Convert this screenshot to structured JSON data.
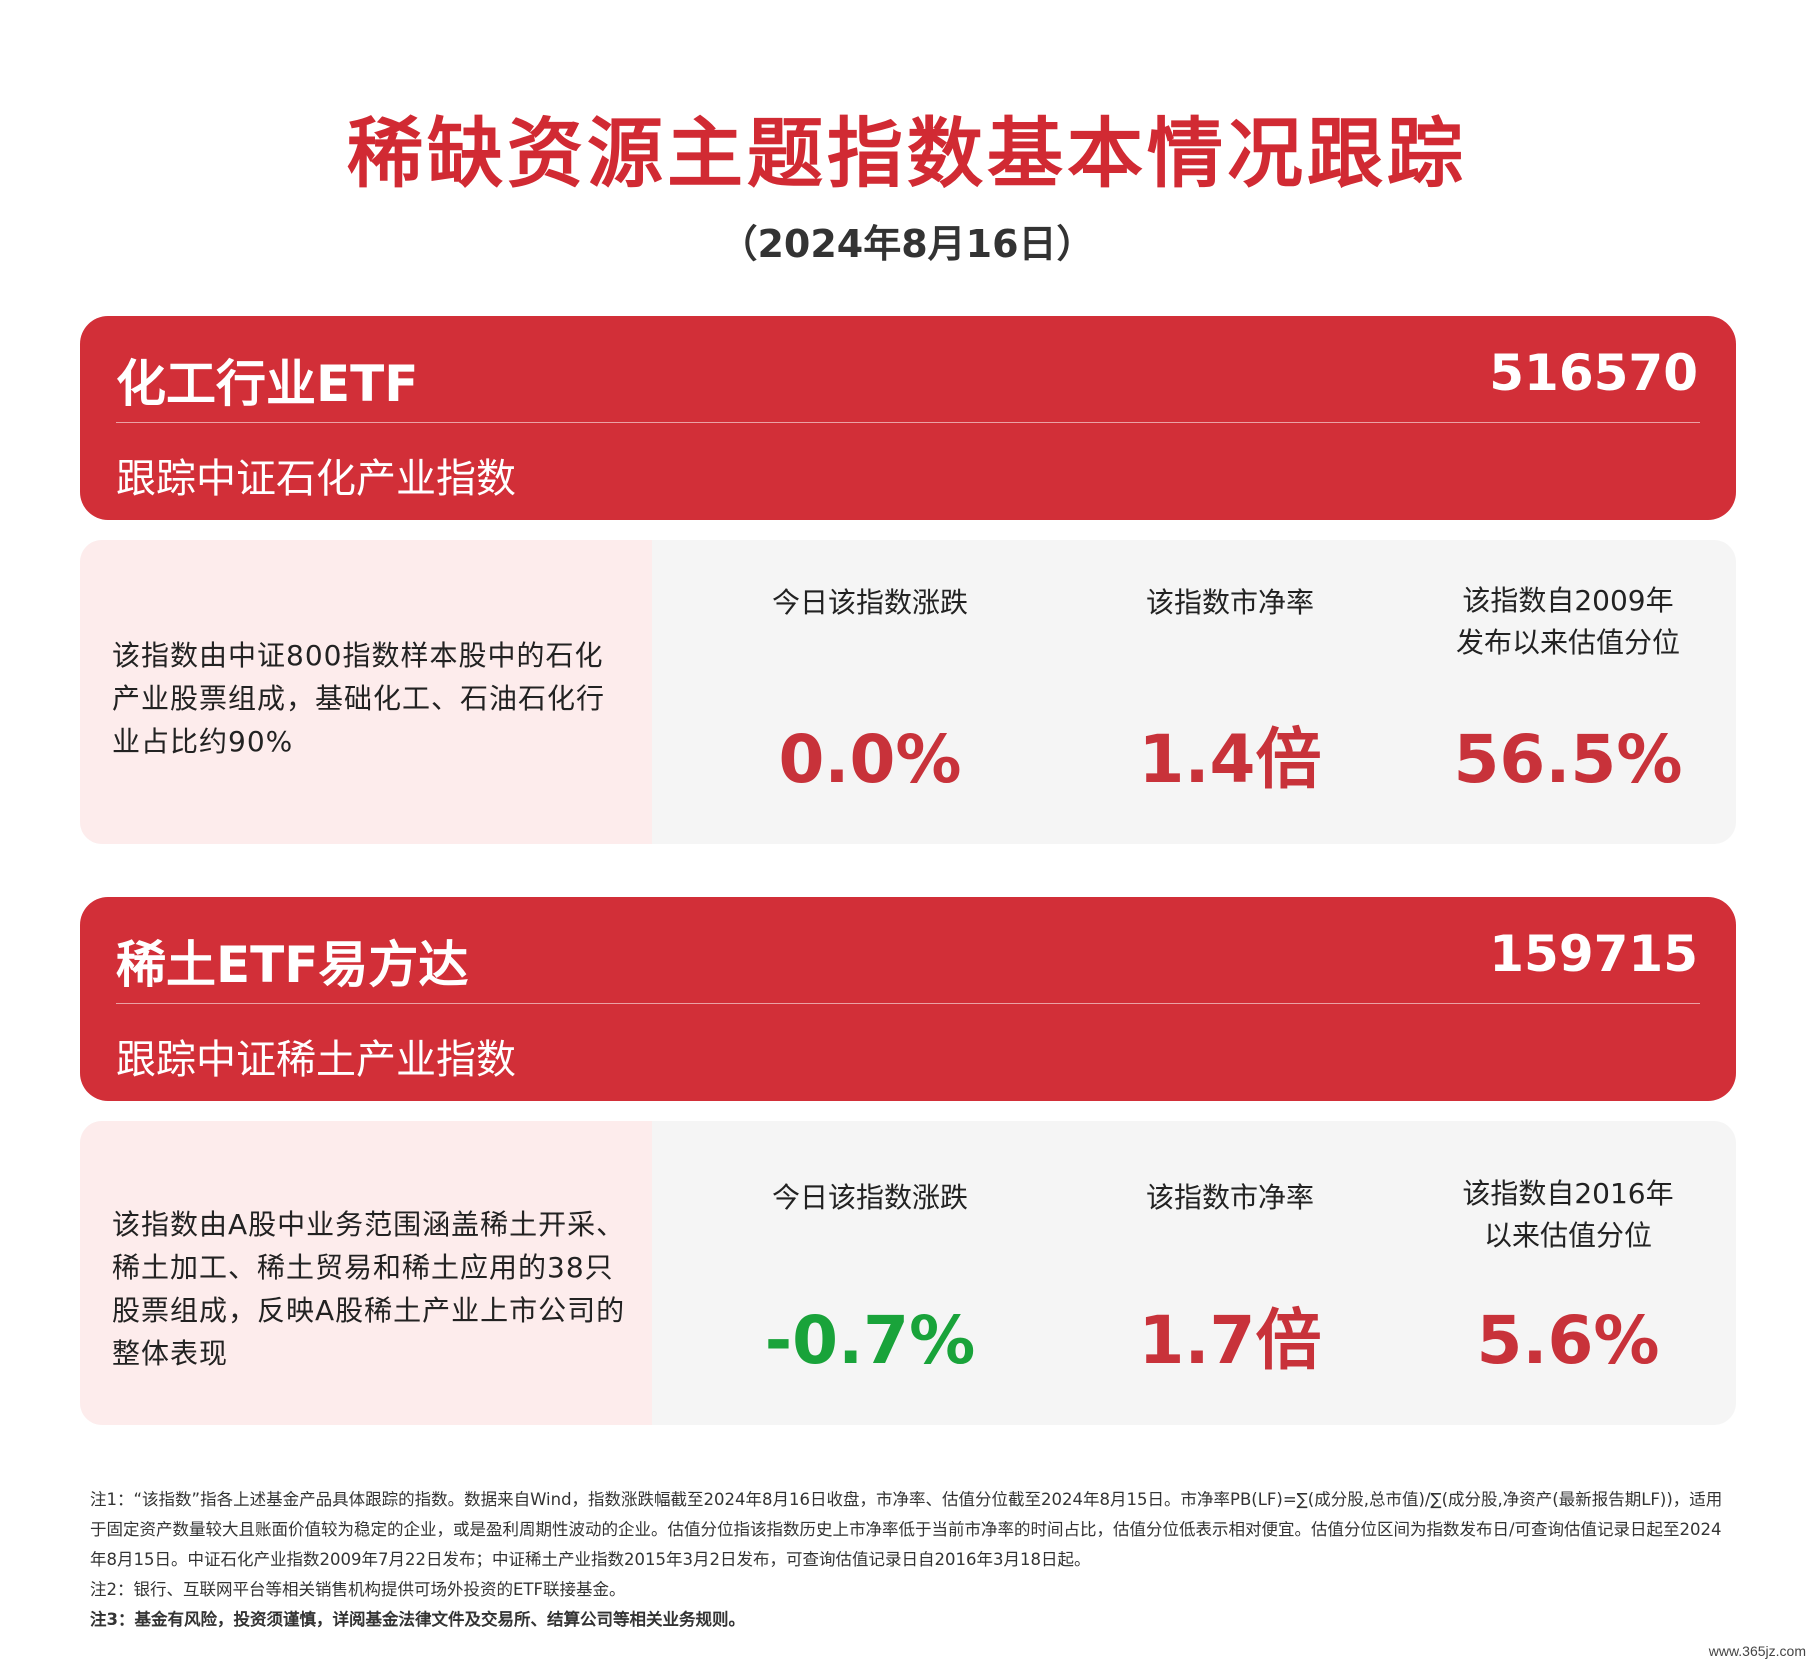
{
  "title": "稀缺资源主题指数基本情况跟踪",
  "subtitle": "（2024年8月16日）",
  "funds": [
    {
      "name": "化工行业ETF",
      "code": "516570",
      "track": "跟踪中证石化产业指数",
      "description": "该指数由中证800指数样本股中的石化产业股票组成，基础化工、石油石化行业占比约90%",
      "metrics": [
        {
          "label": "今日该指数涨跌",
          "value": "0.0%"
        },
        {
          "label": "该指数市净率",
          "value": "1.4倍"
        },
        {
          "label": "该指数自2009年\n发布以来估值分位",
          "value": "56.5%"
        }
      ]
    },
    {
      "name": "稀土ETF易方达",
      "code": "159715",
      "track": "跟踪中证稀土产业指数",
      "description": "该指数由A股中业务范围涵盖稀土开采、稀土加工、稀土贸易和稀土应用的38只股票组成，反映A股稀土产业上市公司的整体表现",
      "metrics": [
        {
          "label": "今日该指数涨跌",
          "value": "-0.7%"
        },
        {
          "label": "该指数市净率",
          "value": "1.7倍"
        },
        {
          "label": "该指数自2016年\n以来估值分位",
          "value": "5.6%"
        }
      ]
    }
  ],
  "notes": [
    "注1：“该指数”指各上述基金产品具体跟踪的指数。数据来自Wind，指数涨跌幅截至2024年8月16日收盘，市净率、估值分位截至2024年8月15日。市净率PB(LF)=∑(成分股,总市值)/∑(成分股,净资产(最新报告期LF))，适用于固定资产数量较大且账面价值较为稳定的企业，或是盈利周期性波动的企业。估值分位指该指数历史上市净率低于当前市净率的时间占比，估值分位低表示相对便宜。估值分位区间为指数发布日/可查询估值记录日起至2024年8月15日。中证石化产业指数2009年7月22日发布；中证稀土产业指数2015年3月2日发布，可查询估值记录日自2016年3月18日起。",
    "注2：银行、互联网平台等相关销售机构提供可场外投资的ETF联接基金。",
    "注3：基金有风险，投资须谨慎，详阅基金法律文件及交易所、结算公司等相关业务规则。"
  ],
  "watermark": "www.365jz.com",
  "colors": {
    "accent_red": "#d22f38",
    "title_red": "#d12a33",
    "value_red": "#c8323a",
    "value_green": "#19a33a",
    "desc_bg": "#fdecec",
    "card_bg": "#f5f5f5"
  }
}
